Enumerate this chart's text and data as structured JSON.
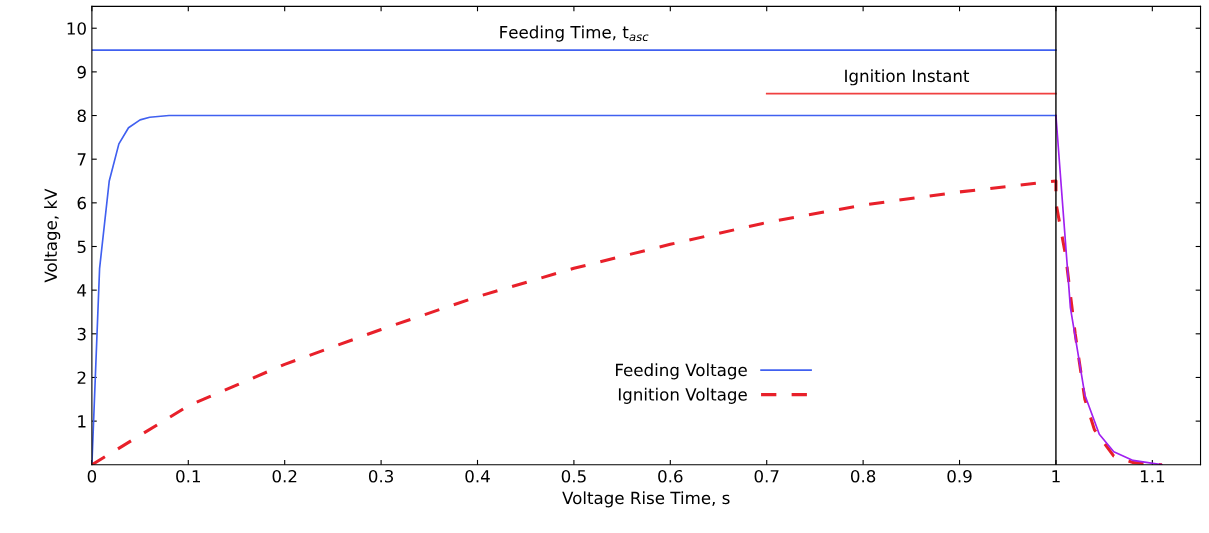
{
  "chart_data": {
    "type": "line",
    "xlabel": "Voltage Rise Time, s",
    "ylabel": "Voltage, kV",
    "xlim": [
      0,
      1.15
    ],
    "ylim": [
      0,
      10.5
    ],
    "xticks": [
      0,
      0.1,
      0.2,
      0.3,
      0.4,
      0.5,
      0.6,
      0.7,
      0.8,
      0.9,
      1,
      1.1
    ],
    "yticks": [
      1,
      2,
      3,
      4,
      5,
      6,
      7,
      8,
      9,
      10
    ],
    "series": [
      {
        "name": "Feeding Voltage",
        "color": "#4060f0",
        "line_style": "solid",
        "x": [
          0,
          0.008,
          0.018,
          0.028,
          0.038,
          0.05,
          0.06,
          0.08,
          0.1,
          1.0
        ],
        "values": [
          0,
          4.5,
          6.5,
          7.35,
          7.72,
          7.9,
          7.96,
          8,
          8,
          8
        ]
      },
      {
        "name": "Ignition Voltage",
        "color": "#e8202a",
        "line_style": "dashed",
        "x": [
          0,
          0.1,
          0.2,
          0.3,
          0.4,
          0.5,
          0.6,
          0.7,
          0.8,
          0.9,
          1.0,
          1.0,
          1.01,
          1.02,
          1.03,
          1.04,
          1.06,
          1.08,
          1.11
        ],
        "values": [
          0,
          1.35,
          2.3,
          3.1,
          3.85,
          4.5,
          5.05,
          5.55,
          5.95,
          6.25,
          6.5,
          6.0,
          4.8,
          3.0,
          1.5,
          0.8,
          0.2,
          0.05,
          0
        ]
      },
      {
        "color": "#a020f0",
        "line_style": "solid",
        "x": [
          1.0,
          1.015,
          1.03,
          1.045,
          1.06,
          1.08,
          1.11
        ],
        "values": [
          8,
          3.6,
          1.6,
          0.7,
          0.3,
          0.1,
          0
        ]
      },
      {
        "color": "#4060f0",
        "line_style": "solid",
        "x": [
          0,
          1
        ],
        "values": [
          9.5,
          9.5
        ]
      },
      {
        "color": "#f04040",
        "line_style": "solid",
        "x": [
          0.7,
          1
        ],
        "values": [
          8.5,
          8.5
        ]
      }
    ],
    "annotations": [
      {
        "text": "Feeding Time, t$_{asc}$",
        "x": 0.5,
        "y": 9.5
      },
      {
        "text": "Ignition Instant",
        "x": 0.845,
        "y": 8.5
      }
    ],
    "ref_lines": [
      {
        "axis": "x",
        "value": 1,
        "color": "#000000",
        "line_style": "solid"
      }
    ],
    "grid": false,
    "legend": "bottom"
  }
}
